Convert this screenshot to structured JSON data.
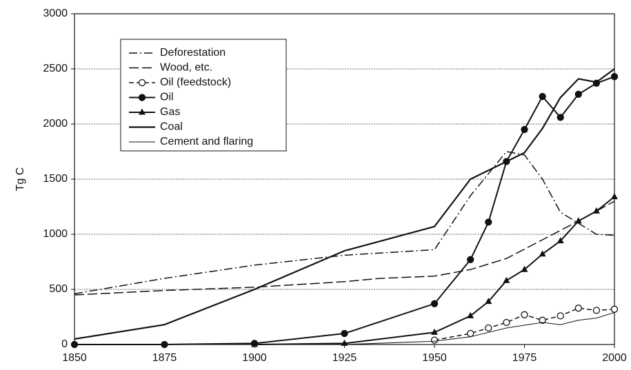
{
  "chart_data": {
    "type": "line",
    "y_label": "Tg C",
    "xlim": [
      1850,
      2000
    ],
    "xticks": [
      1850,
      1875,
      1900,
      1925,
      1950,
      1975,
      2000
    ],
    "ylim": [
      0,
      3000
    ],
    "yticks": [
      0,
      500,
      1000,
      1500,
      2000,
      2500,
      3000
    ],
    "grid": true,
    "legend": "upper left",
    "series": [
      {
        "name": "Deforestation",
        "color": "#111111",
        "dash": "dash-dot",
        "marker": "none",
        "width": 1.5,
        "x": [
          1850,
          1875,
          1900,
          1925,
          1950,
          1960,
          1970,
          1975,
          1980,
          1985,
          1990,
          1995,
          2000
        ],
        "values": [
          460,
          600,
          720,
          810,
          860,
          1350,
          1750,
          1720,
          1500,
          1200,
          1100,
          1000,
          990
        ]
      },
      {
        "name": "Wood, etc.",
        "color": "#111111",
        "dash": "long-dash",
        "marker": "none",
        "width": 1.5,
        "x": [
          1850,
          1875,
          1900,
          1925,
          1935,
          1950,
          1960,
          1970,
          1980,
          1990,
          2000
        ],
        "values": [
          450,
          490,
          520,
          570,
          600,
          620,
          680,
          780,
          950,
          1120,
          1300
        ]
      },
      {
        "name": "Oil (feedstock)",
        "color": "#111111",
        "dash": "dash",
        "marker": "circle-open",
        "width": 1.5,
        "x": [
          1950,
          1960,
          1965,
          1970,
          1975,
          1980,
          1985,
          1990,
          1995,
          2000
        ],
        "values": [
          40,
          100,
          150,
          200,
          270,
          220,
          260,
          330,
          310,
          320
        ]
      },
      {
        "name": "Oil",
        "color": "#111111",
        "dash": "solid",
        "marker": "circle",
        "width": 2,
        "x": [
          1850,
          1875,
          1900,
          1925,
          1950,
          1960,
          1965,
          1970,
          1975,
          1980,
          1985,
          1990,
          1995,
          2000
        ],
        "values": [
          0,
          0,
          10,
          100,
          370,
          770,
          1110,
          1660,
          1950,
          2250,
          2060,
          2270,
          2370,
          2430
        ]
      },
      {
        "name": "Gas",
        "color": "#111111",
        "dash": "solid",
        "marker": "triangle",
        "width": 2,
        "x": [
          1900,
          1925,
          1950,
          1960,
          1965,
          1970,
          1975,
          1980,
          1985,
          1990,
          1995,
          2000
        ],
        "values": [
          0,
          10,
          110,
          260,
          390,
          580,
          680,
          820,
          940,
          1120,
          1210,
          1340
        ]
      },
      {
        "name": "Coal",
        "color": "#111111",
        "dash": "solid",
        "marker": "none",
        "width": 2.2,
        "x": [
          1850,
          1875,
          1900,
          1925,
          1950,
          1960,
          1965,
          1975,
          1980,
          1985,
          1990,
          1995,
          2000
        ],
        "values": [
          50,
          180,
          500,
          850,
          1070,
          1500,
          1580,
          1740,
          1960,
          2240,
          2410,
          2380,
          2500
        ]
      },
      {
        "name": "Cement and flaring",
        "color": "#111111",
        "dash": "solid",
        "marker": "none",
        "width": 1,
        "x": [
          1925,
          1950,
          1960,
          1970,
          1980,
          1985,
          1990,
          1995,
          2000
        ],
        "values": [
          0,
          30,
          70,
          150,
          200,
          180,
          220,
          240,
          290
        ]
      }
    ]
  }
}
